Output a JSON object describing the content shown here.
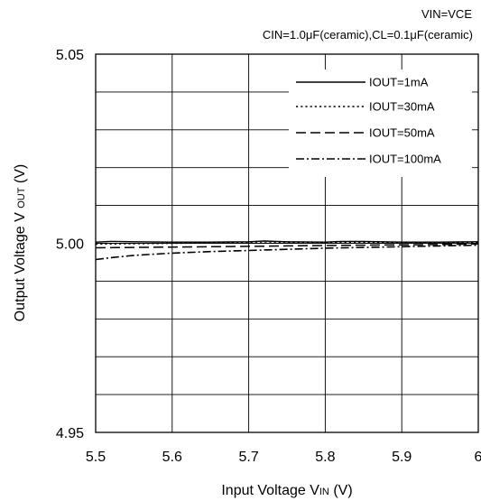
{
  "chart_data": {
    "type": "line",
    "conditions": [
      "VIN=VCE",
      "CIN=1.0μF(ceramic),CL=0.1μF(ceramic)"
    ],
    "xlabel": {
      "main": "Input Voltage V",
      "sub": "IN",
      "unit": " (V)"
    },
    "ylabel": {
      "main": "Output Voltage V ",
      "sub": "OUT",
      "unit": " (V)"
    },
    "xlim": [
      5.5,
      6.0
    ],
    "ylim": [
      4.95,
      5.05
    ],
    "x_ticks": [
      5.5,
      5.6,
      5.7,
      5.8,
      5.9,
      6.0
    ],
    "x_tick_labels": [
      "5.5",
      "5.6",
      "5.7",
      "5.8",
      "5.9",
      "6"
    ],
    "y_tick_labels": [
      {
        "value": 5.05,
        "label": "5.05"
      },
      {
        "value": 5.0,
        "label": "5.00"
      },
      {
        "value": 4.95,
        "label": "4.95"
      }
    ],
    "grid": true,
    "legend_position": "top-right",
    "series": [
      {
        "name": "IOUT=1mA",
        "style": "solid",
        "x": [
          5.5,
          5.52,
          5.55,
          5.6,
          5.65,
          5.7,
          5.72,
          5.75,
          5.8,
          5.82,
          5.85,
          5.9,
          5.95,
          6.0
        ],
        "y": [
          5.0003,
          5.0005,
          5.0004,
          5.0003,
          5.0003,
          5.0004,
          5.0006,
          5.0004,
          5.0003,
          5.0005,
          5.0005,
          5.0003,
          5.0003,
          5.0004
        ]
      },
      {
        "name": "IOUT=30mA",
        "style": "dotted",
        "x": [
          5.5,
          5.55,
          5.6,
          5.65,
          5.7,
          5.75,
          5.8,
          5.85,
          5.9,
          5.95,
          6.0
        ],
        "y": [
          4.9998,
          4.9999,
          5.0,
          5.0001,
          5.0001,
          5.0001,
          5.0002,
          5.0003,
          5.0002,
          5.0002,
          5.0003
        ]
      },
      {
        "name": "IOUT=50mA",
        "style": "dashed",
        "x": [
          5.5,
          5.55,
          5.6,
          5.65,
          5.7,
          5.75,
          5.8,
          5.85,
          5.9,
          5.95,
          6.0
        ],
        "y": [
          4.9988,
          4.9989,
          4.999,
          4.9991,
          4.9992,
          4.9993,
          4.9994,
          4.9995,
          4.9996,
          4.9997,
          4.9998
        ]
      },
      {
        "name": "IOUT=100mA",
        "style": "dashdot",
        "x": [
          5.5,
          5.52,
          5.55,
          5.6,
          5.65,
          5.7,
          5.75,
          5.8,
          5.85,
          5.9,
          5.95,
          6.0
        ],
        "y": [
          4.9957,
          4.9962,
          4.9968,
          4.9974,
          4.9978,
          4.9981,
          4.9984,
          4.9987,
          4.9989,
          4.9991,
          4.9993,
          4.9995
        ]
      }
    ]
  }
}
